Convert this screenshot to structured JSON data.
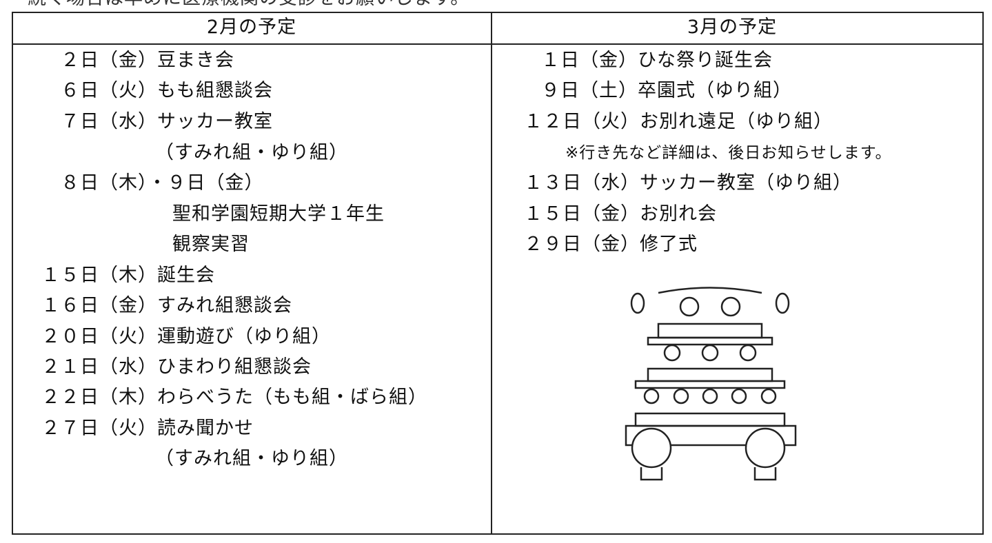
{
  "intro": "続く場合は早めに医療機関の受診をお願いします。",
  "table": {
    "headers": [
      "2月の予定",
      "3月の予定"
    ],
    "february": [
      "２日（金）豆まき会",
      "６日（火）もも組懇談会",
      "７日（水）サッカー教室",
      "（すみれ組・ゆり組）",
      "８日（木）・９日（金）",
      "聖和学園短期大学１年生",
      "観察実習",
      "１５日（木）誕生会",
      "１６日（金）すみれ組懇談会",
      "２０日（火）運動遊び（ゆり組）",
      "２１日（水）ひまわり組懇談会",
      "２２日（木）わらべうた（もも組・ばら組）",
      "２７日（火）読み聞かせ",
      "（すみれ組・ゆり組）"
    ],
    "march": [
      "１日（金）ひな祭り誕生会",
      "９日（土）卒園式（ゆり組）",
      "１２日（火）お別れ遠足（ゆり組）",
      "※行き先など詳細は、後日お知らせします。",
      "１３日（水）サッカー教室（ゆり組）",
      "１５日（金）お別れ会",
      "２９日（金）修了式"
    ]
  }
}
